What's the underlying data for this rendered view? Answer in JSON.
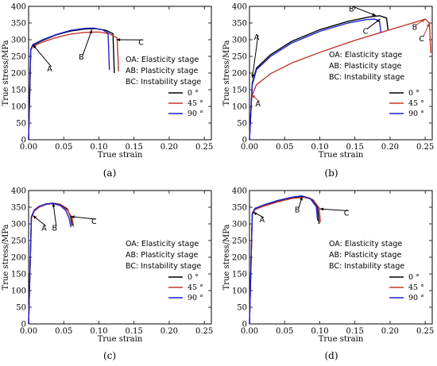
{
  "chart_data": [
    {
      "panel_label": "(a)",
      "type": "line",
      "xlabel": "True strain",
      "ylabel": "True stress/MPa",
      "xlim": [
        0,
        0.26
      ],
      "ylim": [
        0,
        400
      ],
      "xticks": [
        "0.00",
        "0.05",
        "0.10",
        "0.15",
        "0.20",
        "0.25"
      ],
      "yticks": [
        "0",
        "50",
        "100",
        "150",
        "200",
        "250",
        "300",
        "350",
        "400"
      ],
      "stages": [
        "OA: Elasticity stage",
        "AB: Plasticity  stage",
        "BC: Instability stage"
      ],
      "legend": [
        "0 °",
        "45 °",
        "90 °"
      ],
      "annotations": [
        "A",
        "B",
        "C"
      ],
      "colors": [
        "#000000",
        "#c0392b",
        "#1f1fd6"
      ],
      "series": [
        {
          "name": "0 °",
          "x": [
            0,
            0.003,
            0.006,
            0.02,
            0.04,
            0.06,
            0.08,
            0.095,
            0.11,
            0.12,
            0.122
          ],
          "y": [
            0,
            270,
            283,
            298,
            315,
            326,
            332,
            333,
            328,
            318,
            200
          ]
        },
        {
          "name": "45 °",
          "x": [
            0,
            0.003,
            0.006,
            0.02,
            0.04,
            0.06,
            0.08,
            0.1,
            0.115,
            0.126,
            0.128
          ],
          "y": [
            0,
            268,
            280,
            293,
            307,
            317,
            322,
            323,
            318,
            305,
            205
          ]
        },
        {
          "name": "90 °",
          "x": [
            0,
            0.003,
            0.006,
            0.02,
            0.04,
            0.06,
            0.08,
            0.092,
            0.105,
            0.113,
            0.115
          ],
          "y": [
            0,
            272,
            285,
            300,
            316,
            328,
            334,
            335,
            330,
            320,
            210
          ]
        }
      ]
    },
    {
      "panel_label": "(b)",
      "type": "line",
      "xlabel": "True strain",
      "ylabel": "True stress/MPa",
      "xlim": [
        0,
        0.26
      ],
      "ylim": [
        0,
        400
      ],
      "xticks": [
        "0.00",
        "0.05",
        "0.10",
        "0.15",
        "0.20",
        "0.25"
      ],
      "yticks": [
        "0",
        "50",
        "100",
        "150",
        "200",
        "250",
        "300",
        "350",
        "400"
      ],
      "stages": [
        "OA: Elasticity stage",
        "AB: Plasticity  stage",
        "BC: Instability stage"
      ],
      "legend": [
        "0 °",
        "45 °",
        "90 °"
      ],
      "annotations": [
        "A",
        "B",
        "C",
        "A",
        "B",
        "C"
      ],
      "colors": [
        "#000000",
        "#c0392b",
        "#1f1fd6"
      ],
      "series": [
        {
          "name": "0 °",
          "x": [
            0,
            0.004,
            0.01,
            0.03,
            0.06,
            0.1,
            0.14,
            0.17,
            0.185,
            0.195,
            0.197
          ],
          "y": [
            0,
            170,
            215,
            255,
            295,
            330,
            355,
            368,
            372,
            365,
            330
          ]
        },
        {
          "name": "45 °",
          "x": [
            0,
            0.003,
            0.01,
            0.03,
            0.06,
            0.1,
            0.15,
            0.2,
            0.235,
            0.25,
            0.256,
            0.258
          ],
          "y": [
            0,
            130,
            165,
            198,
            230,
            262,
            298,
            330,
            352,
            362,
            350,
            260
          ]
        },
        {
          "name": "90 °",
          "x": [
            0,
            0.004,
            0.01,
            0.03,
            0.06,
            0.1,
            0.14,
            0.165,
            0.178,
            0.185,
            0.187
          ],
          "y": [
            0,
            165,
            210,
            250,
            290,
            325,
            350,
            360,
            362,
            355,
            320
          ]
        }
      ]
    },
    {
      "panel_label": "(c)",
      "type": "line",
      "xlabel": "True strain",
      "ylabel": "True stress/MPa",
      "xlim": [
        0,
        0.26
      ],
      "ylim": [
        0,
        400
      ],
      "xticks": [
        "0.00",
        "0.05",
        "0.10",
        "0.15",
        "0.20",
        "0.25"
      ],
      "yticks": [
        "0",
        "50",
        "100",
        "150",
        "200",
        "250",
        "300",
        "350",
        "400"
      ],
      "stages": [
        "OA: Elasticity stage",
        "AB: Plasticity  stage",
        "BC: Instability stage"
      ],
      "legend": [
        "0 °",
        "45 °",
        "90 °"
      ],
      "annotations": [
        "A",
        "B",
        "C"
      ],
      "colors": [
        "#000000",
        "#c0392b",
        "#1f1fd6"
      ],
      "series": [
        {
          "name": "0 °",
          "x": [
            0,
            0.004,
            0.008,
            0.015,
            0.025,
            0.035,
            0.045,
            0.055,
            0.06,
            0.062
          ],
          "y": [
            0,
            320,
            340,
            352,
            360,
            362,
            358,
            345,
            320,
            295
          ]
        },
        {
          "name": "45 °",
          "x": [
            0,
            0.004,
            0.008,
            0.015,
            0.025,
            0.035,
            0.045,
            0.055,
            0.062,
            0.064
          ],
          "y": [
            0,
            318,
            338,
            350,
            358,
            361,
            357,
            342,
            318,
            292
          ]
        },
        {
          "name": "90 °",
          "x": [
            0,
            0.004,
            0.008,
            0.015,
            0.025,
            0.035,
            0.045,
            0.053,
            0.058,
            0.06
          ],
          "y": [
            0,
            322,
            342,
            353,
            360,
            361,
            355,
            340,
            315,
            290
          ]
        }
      ]
    },
    {
      "panel_label": "(d)",
      "type": "line",
      "xlabel": "True strain",
      "ylabel": "True stress/MPa",
      "xlim": [
        0,
        0.26
      ],
      "ylim": [
        0,
        400
      ],
      "xticks": [
        "0.00",
        "0.05",
        "0.10",
        "0.15",
        "0.20",
        "0.25"
      ],
      "yticks": [
        "0",
        "50",
        "100",
        "150",
        "200",
        "250",
        "300",
        "350",
        "400"
      ],
      "stages": [
        "OA: Elasticity stage",
        "AB: Plasticity  stage",
        "BC: Instability stage"
      ],
      "legend": [
        "0 °",
        "45 °",
        "90 °"
      ],
      "annotations": [
        "A",
        "B",
        "C"
      ],
      "colors": [
        "#000000",
        "#c0392b",
        "#1f1fd6"
      ],
      "series": [
        {
          "name": "0 °",
          "x": [
            0,
            0.004,
            0.008,
            0.02,
            0.04,
            0.06,
            0.075,
            0.088,
            0.097,
            0.099
          ],
          "y": [
            0,
            330,
            345,
            355,
            368,
            378,
            382,
            375,
            350,
            300
          ]
        },
        {
          "name": "45 °",
          "x": [
            0,
            0.004,
            0.008,
            0.02,
            0.04,
            0.06,
            0.077,
            0.09,
            0.099,
            0.101
          ],
          "y": [
            0,
            328,
            343,
            353,
            366,
            376,
            380,
            373,
            348,
            305
          ]
        },
        {
          "name": "90 °",
          "x": [
            0,
            0.004,
            0.008,
            0.02,
            0.04,
            0.06,
            0.074,
            0.086,
            0.095,
            0.097
          ],
          "y": [
            0,
            332,
            347,
            357,
            370,
            380,
            384,
            377,
            352,
            310
          ]
        }
      ]
    }
  ]
}
